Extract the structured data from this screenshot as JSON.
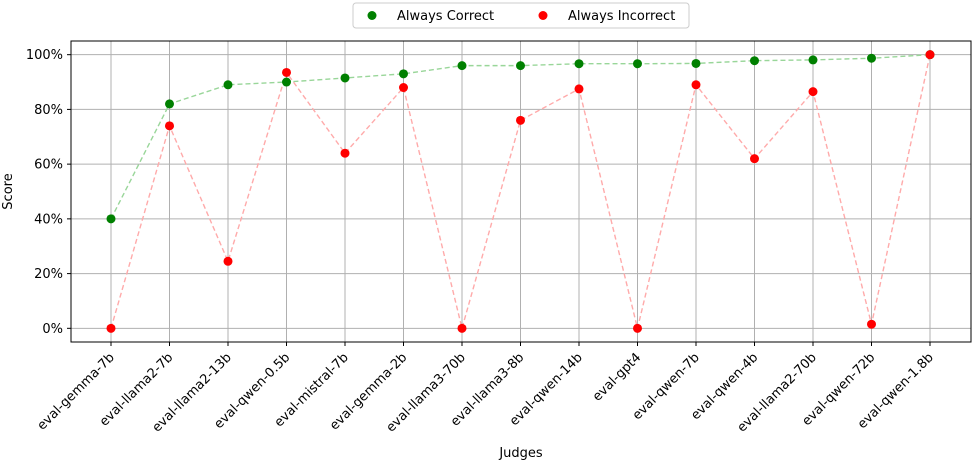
{
  "chart_data": {
    "type": "scatter",
    "categories": [
      "eval-gemma-7b",
      "eval-llama2-7b",
      "eval-llama2-13b",
      "eval-qwen-0.5b",
      "eval-mistral-7b",
      "eval-gemma-2b",
      "eval-llama3-70b",
      "eval-llama3-8b",
      "eval-qwen-14b",
      "eval-gpt4",
      "eval-qwen-7b",
      "eval-qwen-4b",
      "eval-llama2-70b",
      "eval-qwen-72b",
      "eval-qwen-1.8b"
    ],
    "series": [
      {
        "name": "Always Correct",
        "color": "#008000",
        "line_color": "#99d699",
        "values": [
          40,
          82,
          89,
          90,
          91.5,
          93,
          96,
          96,
          96.7,
          96.7,
          96.8,
          97.8,
          98.1,
          98.7,
          100
        ]
      },
      {
        "name": "Always Incorrect",
        "color": "#ff0000",
        "line_color": "#ffaaaa",
        "values": [
          0,
          74,
          24.5,
          93.5,
          64,
          88,
          0,
          76,
          87.5,
          0,
          89,
          62,
          86.5,
          1.5,
          100
        ]
      }
    ],
    "xlabel": "Judges",
    "ylabel": "Score",
    "ylim": [
      -5,
      105
    ],
    "yticks": [
      0,
      20,
      40,
      60,
      80,
      100
    ],
    "ytick_labels": [
      "0%",
      "20%",
      "40%",
      "60%",
      "80%",
      "100%"
    ],
    "grid": true,
    "legend_position": "top-center"
  }
}
